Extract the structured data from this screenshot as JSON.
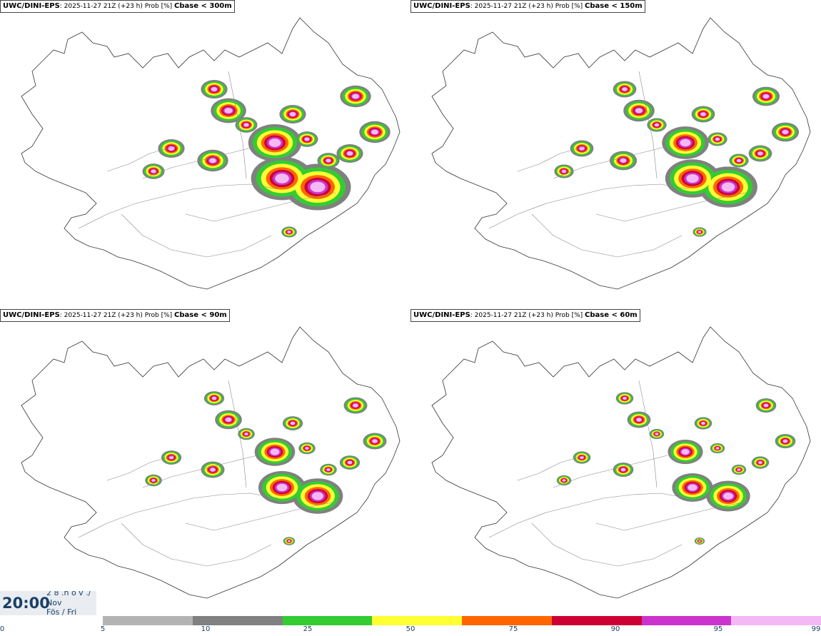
{
  "panels": [
    {
      "model": "UWC/DINI-EPS",
      "info": ": 2025-11-27 21Z (+23 h) Prob [%]",
      "threshold": "Cbase < 300m"
    },
    {
      "model": "UWC/DINI-EPS",
      "info": ": 2025-11-27 21Z (+23 h) Prob [%]",
      "threshold": "Cbase < 150m"
    },
    {
      "model": "UWC/DINI-EPS",
      "info": ": 2025-11-27 21Z (+23 h) Prob [%]",
      "threshold": "Cbase < 90m"
    },
    {
      "model": "UWC/DINI-EPS",
      "info": ": 2025-11-27 21Z (+23 h) Prob [%]",
      "threshold": "Cbase < 60m"
    }
  ],
  "time": {
    "hour": "20:00",
    "line1": "2 8 .n ó v ./",
    "line2": "Nov",
    "line3": "Fös / Fri"
  },
  "legend": {
    "ticks": [
      "0",
      "5",
      "10",
      "25",
      "50",
      "75",
      "90",
      "95",
      "99"
    ],
    "colors": [
      "#b3b3b3",
      "#808080",
      "#33cc33",
      "#ffff33",
      "#ff6600",
      "#cc0033",
      "#cc33cc",
      "#f4b8f4"
    ]
  }
}
